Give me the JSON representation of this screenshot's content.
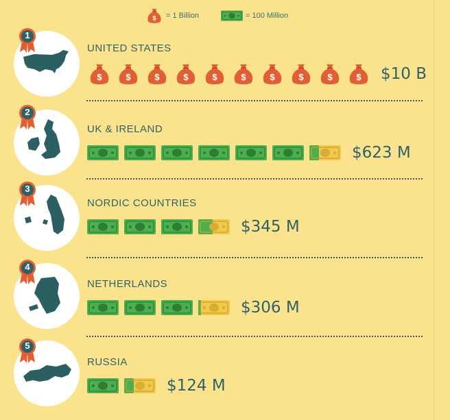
{
  "legend": {
    "bag_label": "= 1 Billion",
    "bill_label": "= 100 Million",
    "bag_icon": "money-bag-icon",
    "bill_icon": "banknote-icon"
  },
  "colors": {
    "background": "#fbe28c",
    "teal": "#2f6266",
    "bag_orange": "#e15f34",
    "bill_green": "#4caf50",
    "bill_gold": "#f2c94c",
    "ribbon_orange": "#e35f32"
  },
  "countries": [
    {
      "rank": "1",
      "name": "UNITED STATES",
      "amount": "$10 B",
      "bags": 10,
      "bills": 0,
      "partial_bill_fraction": 0
    },
    {
      "rank": "2",
      "name": "UK & IRELAND",
      "amount": "$623 M",
      "bags": 0,
      "bills": 6,
      "partial_bill_fraction": 0.23
    },
    {
      "rank": "3",
      "name": "NORDIC COUNTRIES",
      "amount": "$345 M",
      "bags": 0,
      "bills": 3,
      "partial_bill_fraction": 0.45
    },
    {
      "rank": "4",
      "name": "NETHERLANDS",
      "amount": "$306 M",
      "bags": 0,
      "bills": 3,
      "partial_bill_fraction": 0.06
    },
    {
      "rank": "5",
      "name": "RUSSIA",
      "amount": "$124 M",
      "bags": 0,
      "bills": 1,
      "partial_bill_fraction": 0.24
    }
  ]
}
